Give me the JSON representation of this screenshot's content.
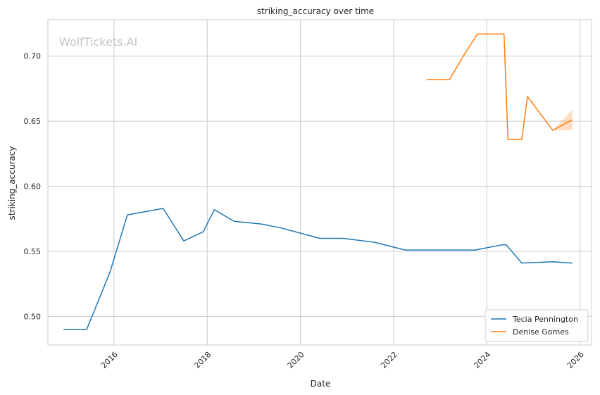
{
  "chart_data": {
    "type": "line",
    "title": "striking_accuracy over time",
    "xlabel": "Date",
    "ylabel": "striking_accuracy",
    "watermark": "WolfTickets.AI",
    "xlim": [
      "2014-08-01",
      "2026-04-01"
    ],
    "ylim": [
      0.478,
      0.728
    ],
    "x_ticks": [
      "2016-01-01",
      "2018-01-01",
      "2020-01-01",
      "2022-01-01",
      "2024-01-01",
      "2026-01-01"
    ],
    "x_tick_labels": [
      "2016",
      "2018",
      "2020",
      "2022",
      "2024",
      "2026"
    ],
    "y_ticks": [
      0.5,
      0.55,
      0.6,
      0.65,
      0.7
    ],
    "y_tick_labels": [
      "0.50",
      "0.55",
      "0.60",
      "0.65",
      "0.70"
    ],
    "grid": true,
    "legend_position": "bottom-right",
    "series": [
      {
        "name": "Tecia Pennington",
        "color": "#1f77b4",
        "points": [
          [
            "2014-12-01",
            0.49
          ],
          [
            "2015-06-01",
            0.49
          ],
          [
            "2015-12-01",
            0.534
          ],
          [
            "2016-04-15",
            0.578
          ],
          [
            "2017-01-20",
            0.583
          ],
          [
            "2017-07-01",
            0.558
          ],
          [
            "2017-12-01",
            0.565
          ],
          [
            "2018-02-25",
            0.582
          ],
          [
            "2018-08-01",
            0.573
          ],
          [
            "2019-03-01",
            0.571
          ],
          [
            "2019-08-01",
            0.568
          ],
          [
            "2020-06-01",
            0.56
          ],
          [
            "2020-12-01",
            0.56
          ],
          [
            "2021-08-01",
            0.557
          ],
          [
            "2022-04-01",
            0.551
          ],
          [
            "2023-01-01",
            0.551
          ],
          [
            "2023-10-01",
            0.551
          ],
          [
            "2024-05-01",
            0.555
          ],
          [
            "2024-06-01",
            0.555
          ],
          [
            "2024-10-01",
            0.541
          ],
          [
            "2025-06-01",
            0.542
          ],
          [
            "2025-11-01",
            0.541
          ]
        ]
      },
      {
        "name": "Denise Gomes",
        "color": "#ff7f0e",
        "points": [
          [
            "2022-09-15",
            0.682
          ],
          [
            "2023-03-15",
            0.682
          ],
          [
            "2023-07-01",
            0.7
          ],
          [
            "2023-10-20",
            0.717
          ],
          [
            "2024-05-15",
            0.717
          ],
          [
            "2024-06-15",
            0.636
          ],
          [
            "2024-10-01",
            0.636
          ],
          [
            "2024-11-15",
            0.669
          ],
          [
            "2025-06-01",
            0.643
          ],
          [
            "2025-11-01",
            0.651
          ]
        ],
        "band": {
          "x": [
            "2025-06-01",
            "2025-11-01"
          ],
          "lower": [
            0.643,
            0.643
          ],
          "upper": [
            0.643,
            0.659
          ]
        }
      }
    ]
  }
}
